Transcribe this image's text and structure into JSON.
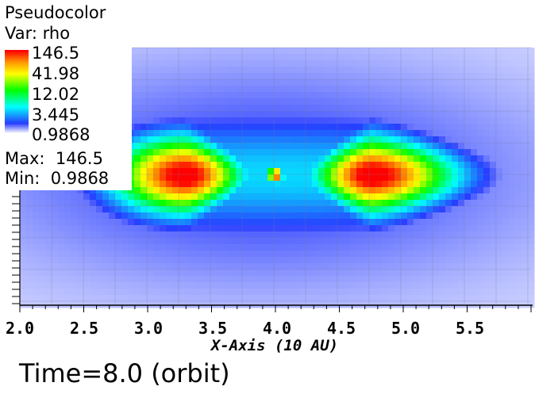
{
  "chart_data": {
    "type": "heatmap",
    "plot_name": "Pseudocolor",
    "variable": "Var: rho",
    "colorbar": {
      "labels": [
        "146.5",
        "41.98",
        "12.02",
        "3.445",
        "0.9868"
      ],
      "colors": [
        "#ff0000",
        "#ffff00",
        "#00ff00",
        "#00ffff",
        "#0000ff",
        "#ffffff"
      ],
      "scale": "log"
    },
    "max_text": "Max:  146.5",
    "min_text": "Min:  0.9868",
    "max": 146.5,
    "min": 0.9868,
    "xlabel": "X-Axis (10 AU)",
    "xticks": [
      "2.0",
      "2.5",
      "3.0",
      "3.5",
      "4.0",
      "4.5",
      "5.0",
      "5.5"
    ],
    "xlim": [
      2.0,
      6.0
    ],
    "grid": "AMR mesh lines",
    "structure": {
      "lobes": [
        {
          "x_center": 3.3,
          "peak": 146.5
        },
        {
          "x_center": 4.75,
          "peak": 146.5
        }
      ],
      "center_knot": {
        "x": 4.0,
        "peak": 146.5
      },
      "background": 0.9868
    }
  },
  "annotation": {
    "time_text": "Time=8.0 (orbit)"
  }
}
